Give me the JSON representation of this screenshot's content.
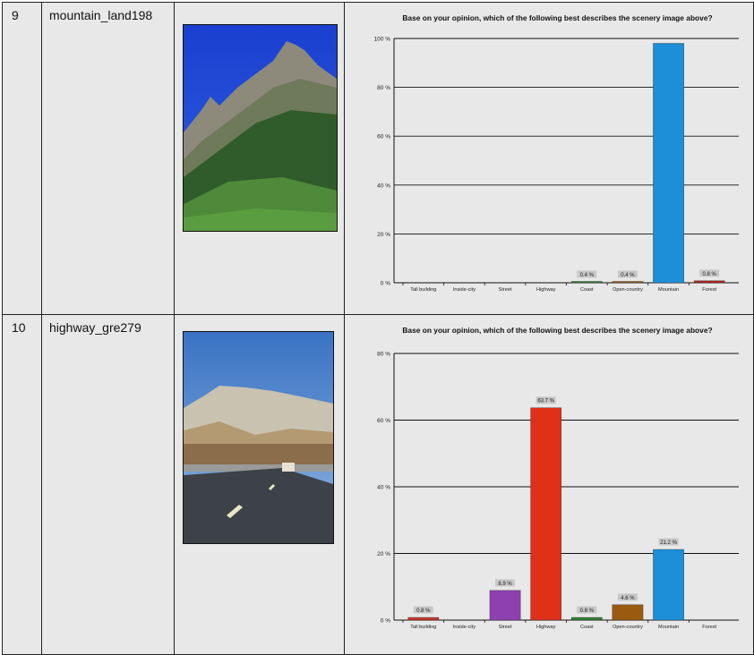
{
  "rows": [
    {
      "index": "9",
      "name": "mountain_land198",
      "image": "mountain-scene",
      "chart": {
        "type": "bar",
        "title": "Base on your opinion, which of the following best describes the scenery image above?",
        "categories": [
          "Tall building",
          "Inside-city",
          "Street",
          "Highway",
          "Coast",
          "Open-country",
          "Mountain",
          "Forest"
        ],
        "values": [
          0,
          0,
          0,
          0,
          0.4,
          0.4,
          98.0,
          0.8
        ],
        "labels": [
          "",
          "",
          "",
          "",
          "0.4 %",
          "0.4 %",
          "",
          "0.8 %"
        ],
        "colors": [
          "#c9352a",
          "#7a4a1a",
          "#8e3fb0",
          "#e03018",
          "#2e7d32",
          "#9a5a10",
          "#1d8fd8",
          "#b0201c"
        ],
        "ylim": [
          0,
          100
        ],
        "yticks": [
          "0 %",
          "20 %",
          "40 %",
          "60 %",
          "80 %",
          "100 %"
        ],
        "ytick_values": [
          0,
          20,
          40,
          60,
          80,
          100
        ]
      }
    },
    {
      "index": "10",
      "name": "highway_gre279",
      "image": "highway-scene",
      "chart": {
        "type": "bar",
        "title": "Base on your opinion, which of the following best describes the scenery image above?",
        "categories": [
          "Tall building",
          "Inside-city",
          "Street",
          "Highway",
          "Coast",
          "Open-country",
          "Mountain",
          "Forest"
        ],
        "values": [
          0.8,
          0,
          8.9,
          63.7,
          0.8,
          4.6,
          21.2,
          0
        ],
        "labels": [
          "0.8 %",
          "",
          "8.9 %",
          "63.7 %",
          "0.8 %",
          "4.6 %",
          "21.2 %",
          ""
        ],
        "colors": [
          "#c9352a",
          "#7a4a1a",
          "#8e3fb0",
          "#e03018",
          "#2e7d32",
          "#9a5a10",
          "#1d8fd8",
          "#b0201c"
        ],
        "ylim": [
          0,
          80
        ],
        "yticks": [
          "0 %",
          "20 %",
          "40 %",
          "60 %",
          "80 %"
        ],
        "ytick_values": [
          0,
          20,
          40,
          60,
          80
        ]
      }
    }
  ],
  "chart_data": [
    {
      "type": "bar",
      "title": "Base on your opinion, which of the following best describes the scenery image above?",
      "categories": [
        "Tall building",
        "Inside-city",
        "Street",
        "Highway",
        "Coast",
        "Open-country",
        "Mountain",
        "Forest"
      ],
      "values": [
        0,
        0,
        0,
        0,
        0.4,
        0.4,
        98.0,
        0.8
      ],
      "ylim": [
        0,
        100
      ],
      "grid": true
    },
    {
      "type": "bar",
      "title": "Base on your opinion, which of the following best describes the scenery image above?",
      "categories": [
        "Tall building",
        "Inside-city",
        "Street",
        "Highway",
        "Coast",
        "Open-country",
        "Mountain",
        "Forest"
      ],
      "values": [
        0.8,
        0,
        8.9,
        63.7,
        0.8,
        4.6,
        21.2,
        0
      ],
      "ylim": [
        0,
        80
      ],
      "grid": true
    }
  ]
}
